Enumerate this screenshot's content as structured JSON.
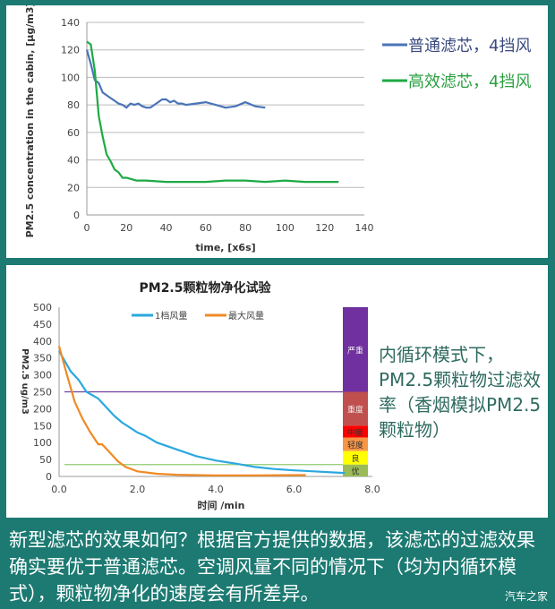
{
  "chart_data": [
    {
      "type": "line",
      "xlabel": "time, [x6s]",
      "ylabel": "PM2.5 concentration in the cabin, [μg/m3]",
      "xlim": [
        0,
        140
      ],
      "ylim": [
        0,
        140
      ],
      "xticks": [
        "0",
        "20",
        "40",
        "60",
        "80",
        "100",
        "120",
        "140"
      ],
      "yticks": [
        "0",
        "20",
        "40",
        "60",
        "80",
        "100",
        "120",
        "140"
      ],
      "grid": "horizontal",
      "legend": "right",
      "series": [
        {
          "name": "普通滤芯，4挡风",
          "color": "#4a74b8",
          "x": [
            0,
            2,
            4,
            6,
            8,
            10,
            12,
            14,
            16,
            18,
            20,
            22,
            24,
            26,
            28,
            30,
            32,
            34,
            36,
            38,
            40,
            42,
            44,
            46,
            48,
            50,
            55,
            60,
            65,
            70,
            75,
            80,
            85,
            90
          ],
          "y": [
            120,
            110,
            98,
            96,
            89,
            87,
            85,
            83,
            81,
            80,
            78,
            81,
            80,
            81,
            79,
            78,
            78,
            80,
            82,
            84,
            84,
            82,
            83,
            81,
            81,
            80,
            81,
            82,
            80,
            78,
            79,
            82,
            79,
            78
          ]
        },
        {
          "name": "高效滤芯，4挡风",
          "color": "#1eaa44",
          "x": [
            0,
            2,
            4,
            6,
            8,
            10,
            12,
            14,
            16,
            18,
            20,
            25,
            30,
            40,
            50,
            60,
            70,
            80,
            90,
            100,
            110,
            120,
            127
          ],
          "y": [
            126,
            124,
            105,
            72,
            57,
            44,
            39,
            33,
            31,
            27,
            27,
            25,
            25,
            24,
            24,
            24,
            25,
            25,
            24,
            25,
            24,
            24,
            24
          ]
        }
      ]
    },
    {
      "type": "line",
      "title": "PM2.5颗粒物净化试验",
      "xlabel": "时间 /min",
      "ylabel": "PM2.5 ug/m3",
      "xlim": [
        0,
        8
      ],
      "ylim": [
        0,
        500
      ],
      "xticks": [
        "0.0",
        "2.0",
        "4.0",
        "6.0",
        "8.0"
      ],
      "yticks": [
        "0",
        "50",
        "100",
        "150",
        "200",
        "250",
        "300",
        "350",
        "400",
        "450",
        "500"
      ],
      "grid": "none",
      "legend": "top",
      "reference_lines": [
        {
          "y": 250,
          "color": "#7040a0"
        },
        {
          "y": 35,
          "color": "#90cc70"
        }
      ],
      "bands": [
        {
          "label": "严重",
          "from": 250,
          "to": 500,
          "color": "#7030a0"
        },
        {
          "label": "重度",
          "from": 150,
          "to": 250,
          "color": "#c0504d"
        },
        {
          "label": "中度",
          "from": 115,
          "to": 150,
          "color": "#ff0000"
        },
        {
          "label": "轻度",
          "from": 75,
          "to": 115,
          "color": "#f79646"
        },
        {
          "label": "良",
          "from": 35,
          "to": 75,
          "color": "#ffff00"
        },
        {
          "label": "优",
          "from": 0,
          "to": 35,
          "color": "#9bbb59"
        }
      ],
      "series": [
        {
          "name": "1档风量",
          "color": "#2aa8e0",
          "x": [
            0,
            0.3,
            0.5,
            0.7,
            1.0,
            1.2,
            1.4,
            1.6,
            1.8,
            2.0,
            2.2,
            2.5,
            3.0,
            3.5,
            4.0,
            4.5,
            5.0,
            5.5,
            6.0,
            6.5,
            7.0,
            7.3
          ],
          "y": [
            370,
            310,
            285,
            250,
            230,
            205,
            180,
            160,
            145,
            130,
            120,
            100,
            80,
            60,
            47,
            38,
            28,
            22,
            18,
            15,
            12,
            10
          ]
        },
        {
          "name": "最大风量",
          "color": "#f08a24",
          "x": [
            0,
            0.2,
            0.4,
            0.6,
            0.8,
            1.0,
            1.1,
            1.3,
            1.5,
            1.7,
            2.0,
            2.5,
            3.0,
            4.0,
            5.0,
            6.0,
            6.3
          ],
          "y": [
            385,
            300,
            220,
            170,
            130,
            95,
            95,
            70,
            45,
            28,
            15,
            8,
            5,
            3,
            3,
            4,
            4
          ]
        }
      ]
    }
  ],
  "side_note": "内循环模式下，PM2.5颗粒物过滤效率（香烟模拟PM2.5颗粒物）",
  "caption": "新型滤芯的效果如何？根据官方提供的数据，该滤芯的过滤效果确实要优于普通滤芯。空调风量不同的情况下（均为内循环模式），颗粒物净化的速度会有所差异。",
  "watermark": "汽车之家"
}
